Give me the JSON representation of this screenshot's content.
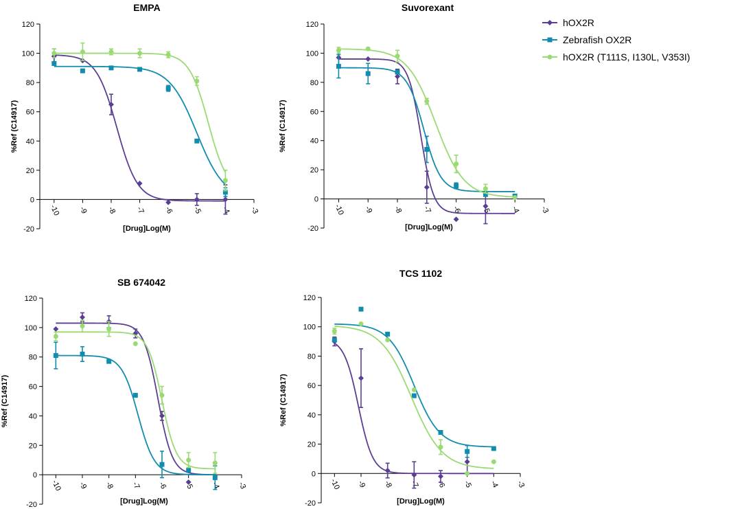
{
  "legend": [
    {
      "name": "hOX2R",
      "color": "#5b3e93",
      "marker": "diamond"
    },
    {
      "name": "Zebrafish OX2R",
      "color": "#118cae",
      "marker": "square"
    },
    {
      "name": "hOX2R (T111S, I130L, V353I)",
      "color": "#9ada72",
      "marker": "circle"
    }
  ],
  "chart_data": [
    {
      "type": "line",
      "title": "EMPA",
      "xlabel": "[Drug]Log(M)",
      "ylabel": "%Ref (C14917)",
      "xlim": [
        -10.5,
        -3
      ],
      "ylim": [
        -20,
        120
      ],
      "xticks": [
        -10,
        -9,
        -8,
        -7,
        -6,
        -5,
        -4,
        -3
      ],
      "yticks": [
        -20,
        0,
        20,
        40,
        60,
        80,
        100,
        120
      ],
      "series": [
        {
          "name": "hOX2R",
          "fit": {
            "bottom": -1,
            "top": 99,
            "logEC50": -7.8,
            "hill": 1.2
          },
          "points": [
            {
              "x": -10,
              "y": 98,
              "err": 5
            },
            {
              "x": -9,
              "y": 95,
              "err": 0
            },
            {
              "x": -8,
              "y": 65,
              "err": 7
            },
            {
              "x": -7,
              "y": 11,
              "err": 0
            },
            {
              "x": -6,
              "y": -2,
              "err": 0
            },
            {
              "x": -5,
              "y": 0,
              "err": 4
            },
            {
              "x": -4,
              "y": 0,
              "err": 10
            }
          ]
        },
        {
          "name": "Zebrafish OX2R",
          "fit": {
            "bottom": 0,
            "top": 91,
            "logEC50": -5.0,
            "hill": 0.9
          },
          "points": [
            {
              "x": -10,
              "y": 93,
              "err": 0
            },
            {
              "x": -9,
              "y": 88,
              "err": 0
            },
            {
              "x": -8,
              "y": 90,
              "err": 0
            },
            {
              "x": -7,
              "y": 89,
              "err": 0
            },
            {
              "x": -6,
              "y": 76,
              "err": 2
            },
            {
              "x": -5,
              "y": 40,
              "err": 0
            },
            {
              "x": -4,
              "y": 5,
              "err": 3
            }
          ]
        },
        {
          "name": "hOX2R (T111S, I130L, V353I)",
          "fit": {
            "bottom": 5,
            "top": 100,
            "logEC50": -4.6,
            "hill": 1.3
          },
          "points": [
            {
              "x": -10,
              "y": 100,
              "err": 3
            },
            {
              "x": -9,
              "y": 101,
              "err": 6
            },
            {
              "x": -8,
              "y": 101,
              "err": 2
            },
            {
              "x": -7,
              "y": 100,
              "err": 3
            },
            {
              "x": -6,
              "y": 99,
              "err": 2
            },
            {
              "x": -5,
              "y": 81,
              "err": 3
            },
            {
              "x": -4,
              "y": 13,
              "err": 7
            }
          ]
        }
      ]
    },
    {
      "type": "line",
      "title": "Suvorexant",
      "xlabel": "[Drug]Log(M)",
      "ylabel": "%Ref (C14917)",
      "xlim": [
        -10.5,
        -3
      ],
      "ylim": [
        -20,
        120
      ],
      "xticks": [
        -10,
        -9,
        -8,
        -7,
        -6,
        -5,
        -4,
        -3
      ],
      "yticks": [
        -20,
        0,
        20,
        40,
        60,
        80,
        100,
        120
      ],
      "series": [
        {
          "name": "hOX2R",
          "fit": {
            "bottom": -10,
            "top": 96,
            "logEC50": -7.2,
            "hill": 2.0
          },
          "points": [
            {
              "x": -10,
              "y": 97,
              "err": 5
            },
            {
              "x": -9,
              "y": 96,
              "err": 0
            },
            {
              "x": -8,
              "y": 84,
              "err": 5
            },
            {
              "x": -7,
              "y": 8,
              "err": 11
            },
            {
              "x": -6,
              "y": -14,
              "err": 0
            },
            {
              "x": -5,
              "y": -5,
              "err": 12
            }
          ]
        },
        {
          "name": "Zebrafish OX2R",
          "fit": {
            "bottom": 5,
            "top": 90,
            "logEC50": -7.1,
            "hill": 1.5
          },
          "points": [
            {
              "x": -10,
              "y": 91,
              "err": 8
            },
            {
              "x": -9,
              "y": 86,
              "err": 7
            },
            {
              "x": -8,
              "y": 87,
              "err": 0
            },
            {
              "x": -7,
              "y": 34,
              "err": 9
            },
            {
              "x": -6,
              "y": 9,
              "err": 2
            },
            {
              "x": -5,
              "y": 3,
              "err": 0
            },
            {
              "x": -4,
              "y": 2,
              "err": 0
            }
          ]
        },
        {
          "name": "hOX2R (T111S, I130L, V353I)",
          "fit": {
            "bottom": 1,
            "top": 103,
            "logEC50": -6.7,
            "hill": 0.9
          },
          "points": [
            {
              "x": -10,
              "y": 102,
              "err": 2
            },
            {
              "x": -9,
              "y": 103,
              "err": 0
            },
            {
              "x": -8,
              "y": 98,
              "err": 4
            },
            {
              "x": -7,
              "y": 67,
              "err": 2
            },
            {
              "x": -6,
              "y": 24,
              "err": 6
            },
            {
              "x": -5,
              "y": 7,
              "err": 3
            },
            {
              "x": -4,
              "y": 1,
              "err": 0
            }
          ]
        }
      ]
    },
    {
      "type": "line",
      "title": "SB 674042",
      "xlabel": "[Drug]Log(M)",
      "ylabel": "%Ref (C14917)",
      "xlim": [
        -10.5,
        -3
      ],
      "ylim": [
        -20,
        120
      ],
      "xticks": [
        -10,
        -9,
        -8,
        -7,
        -6,
        -5,
        -4,
        -3
      ],
      "yticks": [
        -20,
        0,
        20,
        40,
        60,
        80,
        100,
        120
      ],
      "series": [
        {
          "name": "hOX2R",
          "fit": {
            "bottom": 0,
            "top": 103,
            "logEC50": -6.15,
            "hill": 1.6
          },
          "points": [
            {
              "x": -10,
              "y": 99,
              "err": 0
            },
            {
              "x": -9,
              "y": 107,
              "err": 3
            },
            {
              "x": -8,
              "y": 104,
              "err": 4
            },
            {
              "x": -7,
              "y": 96,
              "err": 3
            },
            {
              "x": -6,
              "y": 40,
              "err": 3
            },
            {
              "x": -5,
              "y": -5,
              "err": 0
            }
          ]
        },
        {
          "name": "Zebrafish OX2R",
          "fit": {
            "bottom": 0,
            "top": 81,
            "logEC50": -6.9,
            "hill": 1.4
          },
          "points": [
            {
              "x": -10,
              "y": 81,
              "err": 9
            },
            {
              "x": -9,
              "y": 82,
              "err": 5
            },
            {
              "x": -8,
              "y": 77,
              "err": 0
            },
            {
              "x": -7,
              "y": 54,
              "err": 0
            },
            {
              "x": -6,
              "y": 7,
              "err": 9
            },
            {
              "x": -5,
              "y": 3,
              "err": 0
            },
            {
              "x": -4,
              "y": -2,
              "err": 8
            }
          ]
        },
        {
          "name": "hOX2R (T111S, I130L, V353I)",
          "fit": {
            "bottom": 4,
            "top": 97,
            "logEC50": -6.0,
            "hill": 1.6
          },
          "points": [
            {
              "x": -10,
              "y": 94,
              "err": 3
            },
            {
              "x": -9,
              "y": 101,
              "err": 4
            },
            {
              "x": -8,
              "y": 99,
              "err": 5
            },
            {
              "x": -7,
              "y": 89,
              "err": 0
            },
            {
              "x": -6,
              "y": 54,
              "err": 6
            },
            {
              "x": -5,
              "y": 10,
              "err": 5
            },
            {
              "x": -4,
              "y": 8,
              "err": 7
            }
          ]
        }
      ]
    },
    {
      "type": "line",
      "title": "TCS 1102",
      "xlabel": "[Drug]Log(M)",
      "ylabel": "%Ref (C14917)",
      "xlim": [
        -10.5,
        -3
      ],
      "ylim": [
        -20,
        120
      ],
      "xticks": [
        -10,
        -9,
        -8,
        -7,
        -6,
        -5,
        -4,
        -3
      ],
      "yticks": [
        -20,
        0,
        20,
        40,
        60,
        80,
        100,
        120
      ],
      "series": [
        {
          "name": "hOX2R",
          "fit": {
            "bottom": 0,
            "top": 92,
            "logEC50": -9.1,
            "hill": 1.6
          },
          "points": [
            {
              "x": -10,
              "y": 90,
              "err": 3
            },
            {
              "x": -9,
              "y": 65,
              "err": 20
            },
            {
              "x": -8,
              "y": 2,
              "err": 5
            },
            {
              "x": -7,
              "y": -1,
              "err": 9
            },
            {
              "x": -6,
              "y": -2,
              "err": 4
            },
            {
              "x": -5,
              "y": 8,
              "err": 8
            }
          ]
        },
        {
          "name": "Zebrafish OX2R",
          "fit": {
            "bottom": 18,
            "top": 102,
            "logEC50": -7.0,
            "hill": 0.9
          },
          "points": [
            {
              "x": -10,
              "y": 91,
              "err": 0
            },
            {
              "x": -9,
              "y": 112,
              "err": 0
            },
            {
              "x": -8,
              "y": 95,
              "err": 0
            },
            {
              "x": -7,
              "y": 53,
              "err": 0
            },
            {
              "x": -6,
              "y": 28,
              "err": 0
            },
            {
              "x": -5,
              "y": 15,
              "err": 4
            },
            {
              "x": -4,
              "y": 17,
              "err": 0
            }
          ]
        },
        {
          "name": "hOX2R (T111S, I130L, V353I)",
          "fit": {
            "bottom": 3,
            "top": 101,
            "logEC50": -7.1,
            "hill": 0.75
          },
          "points": [
            {
              "x": -10,
              "y": 97,
              "err": 2
            },
            {
              "x": -9,
              "y": 102,
              "err": 0
            },
            {
              "x": -8,
              "y": 91,
              "err": 0
            },
            {
              "x": -7,
              "y": 57,
              "err": 0
            },
            {
              "x": -6,
              "y": 18,
              "err": 5
            },
            {
              "x": -5,
              "y": 0,
              "err": 0
            },
            {
              "x": -4,
              "y": 8,
              "err": 0
            }
          ]
        }
      ]
    }
  ]
}
